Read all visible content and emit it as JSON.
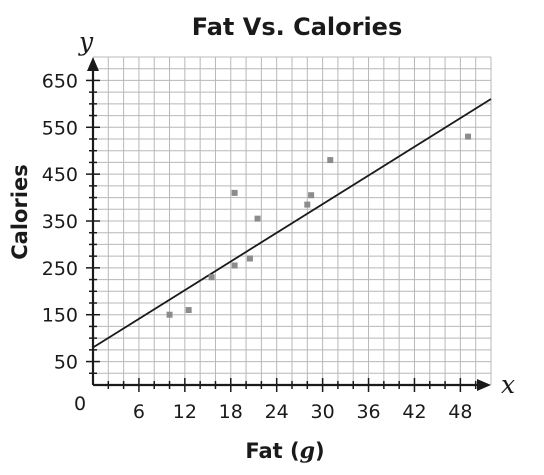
{
  "chart_data": {
    "type": "scatter",
    "title": "Fat Vs. Calories",
    "xlabel": "Fat",
    "xlabel_unit": "g",
    "ylabel": "Calories",
    "x_axis_letter": "x",
    "y_axis_letter": "y",
    "origin_label": "0",
    "xlim": [
      0,
      52
    ],
    "ylim": [
      0,
      700
    ],
    "x_ticks": [
      6,
      12,
      18,
      24,
      30,
      36,
      42,
      48
    ],
    "y_ticks": [
      50,
      150,
      250,
      350,
      450,
      550,
      650
    ],
    "grid": true,
    "points": [
      {
        "x": 10,
        "y": 150
      },
      {
        "x": 12.5,
        "y": 160
      },
      {
        "x": 15.5,
        "y": 230
      },
      {
        "x": 18.5,
        "y": 410
      },
      {
        "x": 18.5,
        "y": 255
      },
      {
        "x": 20.5,
        "y": 270
      },
      {
        "x": 21.5,
        "y": 355
      },
      {
        "x": 28,
        "y": 385
      },
      {
        "x": 28.5,
        "y": 405
      },
      {
        "x": 31,
        "y": 480
      },
      {
        "x": 49,
        "y": 530
      }
    ],
    "trend_line": {
      "intercept": 80,
      "slope": 10.2
    },
    "colors": {
      "points": "#8c8c8c",
      "grid": "#b8b8b8",
      "axes": "#1a1a1a",
      "line": "#1a1a1a"
    }
  }
}
